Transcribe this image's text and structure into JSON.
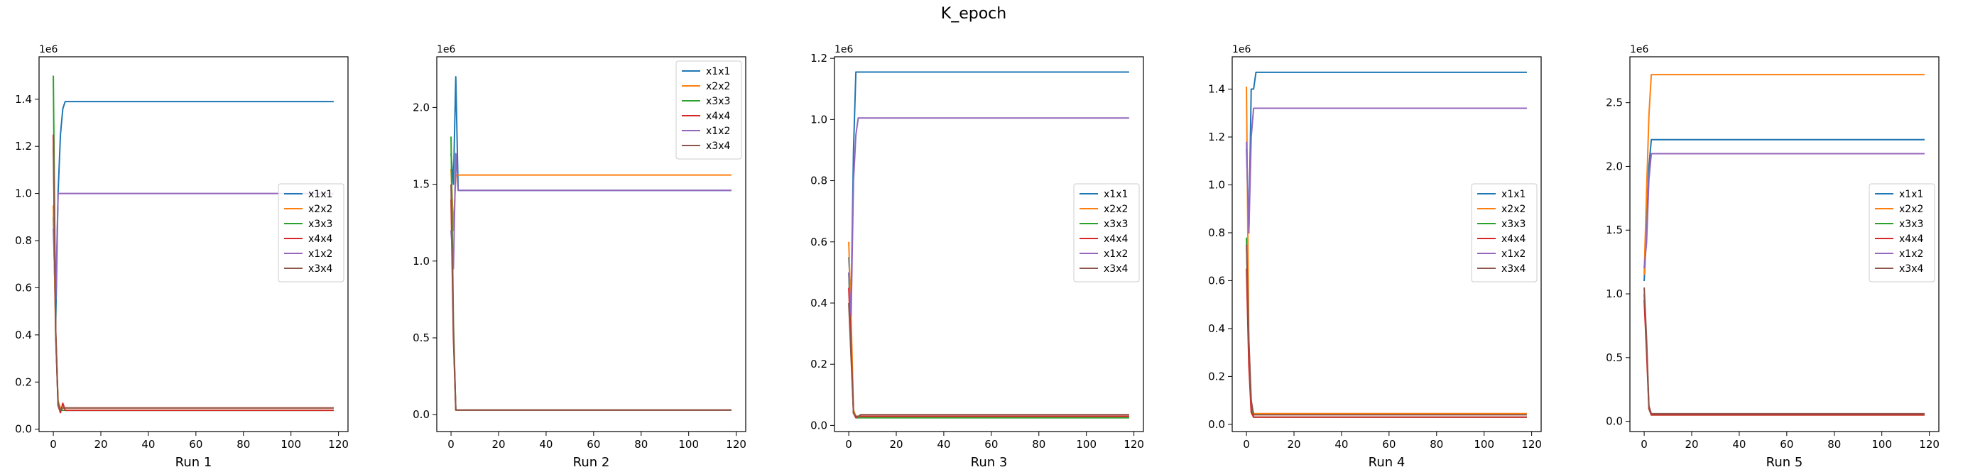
{
  "figure": {
    "title": "K_epoch"
  },
  "colors": {
    "x1x1": "#1f77b4",
    "x2x2": "#ff7f0e",
    "x3x3": "#2ca02c",
    "x4x4": "#d62728",
    "x1x2": "#9467bd",
    "x3x4": "#8c564b"
  },
  "chart_data": [
    {
      "type": "line",
      "xlabel": "Run 1",
      "scale_label": "1e6",
      "xlim": [
        -6,
        124
      ],
      "ylim": [
        -0.01,
        1.58
      ],
      "xticks": [
        0,
        20,
        40,
        60,
        80,
        100,
        120
      ],
      "yticks": [
        0.0,
        0.2,
        0.4,
        0.6,
        0.8,
        1.0,
        1.2,
        1.4
      ],
      "ytick_labels": [
        "0.0",
        "0.2",
        "0.4",
        "0.6",
        "0.8",
        "1.0",
        "1.2",
        "1.4"
      ],
      "legend_position": "center-right",
      "series": [
        {
          "name": "x1x1",
          "x": [
            0,
            1,
            2,
            3,
            4,
            5,
            118
          ],
          "y": [
            0.9,
            0.45,
            1.0,
            1.25,
            1.36,
            1.39,
            1.39
          ]
        },
        {
          "name": "x2x2",
          "x": [
            0,
            1,
            2,
            3,
            4,
            5,
            118
          ],
          "y": [
            0.95,
            0.4,
            0.12,
            0.09,
            0.09,
            0.09,
            0.09
          ]
        },
        {
          "name": "x3x3",
          "x": [
            0,
            1,
            2,
            3,
            4,
            5,
            118
          ],
          "y": [
            1.5,
            0.42,
            0.11,
            0.08,
            0.08,
            0.08,
            0.08
          ]
        },
        {
          "name": "x4x4",
          "x": [
            0,
            1,
            2,
            3,
            4,
            5,
            118
          ],
          "y": [
            1.25,
            0.42,
            0.1,
            0.07,
            0.11,
            0.08,
            0.08
          ]
        },
        {
          "name": "x1x2",
          "x": [
            0,
            1,
            2,
            3,
            118
          ],
          "y": [
            0.85,
            0.55,
            1.0,
            1.0,
            1.0
          ]
        },
        {
          "name": "x3x4",
          "x": [
            0,
            1,
            2,
            3,
            4,
            5,
            118
          ],
          "y": [
            1.2,
            0.4,
            0.1,
            0.08,
            0.09,
            0.09,
            0.09
          ]
        }
      ]
    },
    {
      "type": "line",
      "xlabel": "Run 2",
      "scale_label": "1e6",
      "xlim": [
        -6,
        124
      ],
      "ylim": [
        -0.11,
        2.33
      ],
      "xticks": [
        0,
        20,
        40,
        60,
        80,
        100,
        120
      ],
      "yticks": [
        0.0,
        0.5,
        1.0,
        1.5,
        2.0
      ],
      "ytick_labels": [
        "0.0",
        "0.5",
        "1.0",
        "1.5",
        "2.0"
      ],
      "legend_position": "upper-right",
      "series": [
        {
          "name": "x1x1",
          "x": [
            0,
            1,
            2,
            3,
            118
          ],
          "y": [
            1.7,
            1.5,
            2.2,
            1.46,
            1.46
          ]
        },
        {
          "name": "x2x2",
          "x": [
            0,
            1,
            2,
            3,
            118
          ],
          "y": [
            1.6,
            1.2,
            1.56,
            1.56,
            1.56
          ]
        },
        {
          "name": "x3x3",
          "x": [
            0,
            1,
            2,
            3,
            118
          ],
          "y": [
            1.81,
            0.6,
            0.03,
            0.03,
            0.03
          ]
        },
        {
          "name": "x4x4",
          "x": [
            0,
            1,
            2,
            3,
            118
          ],
          "y": [
            1.4,
            0.5,
            0.03,
            0.03,
            0.03
          ]
        },
        {
          "name": "x1x2",
          "x": [
            0,
            1,
            2,
            3,
            118
          ],
          "y": [
            1.2,
            0.95,
            1.7,
            1.46,
            1.46
          ]
        },
        {
          "name": "x3x4",
          "x": [
            0,
            1,
            2,
            3,
            118
          ],
          "y": [
            1.5,
            0.55,
            0.03,
            0.03,
            0.03
          ]
        }
      ]
    },
    {
      "type": "line",
      "xlabel": "Run 3",
      "scale_label": "1e6",
      "xlim": [
        -6,
        124
      ],
      "ylim": [
        -0.02,
        1.205
      ],
      "xticks": [
        0,
        20,
        40,
        60,
        80,
        100,
        120
      ],
      "yticks": [
        0.0,
        0.2,
        0.4,
        0.6,
        0.8,
        1.0,
        1.2
      ],
      "ytick_labels": [
        "0.0",
        "0.2",
        "0.4",
        "0.6",
        "0.8",
        "1.0",
        "1.2"
      ],
      "legend_position": "center-right",
      "series": [
        {
          "name": "x1x1",
          "x": [
            0,
            1,
            2,
            3,
            118
          ],
          "y": [
            0.55,
            0.4,
            0.9,
            1.155,
            1.155
          ]
        },
        {
          "name": "x2x2",
          "x": [
            0,
            1,
            2,
            3,
            118
          ],
          "y": [
            0.6,
            0.35,
            0.05,
            0.03,
            0.03
          ]
        },
        {
          "name": "x3x3",
          "x": [
            0,
            1,
            2,
            3,
            4,
            5,
            118
          ],
          "y": [
            0.5,
            0.25,
            0.04,
            0.025,
            0.025,
            0.025,
            0.025
          ]
        },
        {
          "name": "x4x4",
          "x": [
            0,
            1,
            2,
            3,
            4,
            5,
            118
          ],
          "y": [
            0.45,
            0.25,
            0.04,
            0.025,
            0.03,
            0.03,
            0.03
          ]
        },
        {
          "name": "x1x2",
          "x": [
            0,
            1,
            2,
            3,
            4,
            5,
            118
          ],
          "y": [
            0.5,
            0.36,
            0.8,
            0.95,
            1.005,
            1.005,
            1.005
          ]
        },
        {
          "name": "x3x4",
          "x": [
            0,
            1,
            2,
            3,
            4,
            5,
            118
          ],
          "y": [
            0.4,
            0.22,
            0.04,
            0.03,
            0.03,
            0.035,
            0.035
          ]
        }
      ]
    },
    {
      "type": "line",
      "xlabel": "Run 4",
      "scale_label": "1e6",
      "xlim": [
        -6,
        124
      ],
      "ylim": [
        -0.03,
        1.535
      ],
      "xticks": [
        0,
        20,
        40,
        60,
        80,
        100,
        120
      ],
      "yticks": [
        0.0,
        0.2,
        0.4,
        0.6,
        0.8,
        1.0,
        1.2,
        1.4
      ],
      "ytick_labels": [
        "0.0",
        "0.2",
        "0.4",
        "0.6",
        "0.8",
        "1.0",
        "1.2",
        "1.4"
      ],
      "legend_position": "center-right",
      "series": [
        {
          "name": "x1x1",
          "x": [
            0,
            1,
            2,
            3,
            4,
            5,
            118
          ],
          "y": [
            1.15,
            0.8,
            1.4,
            1.4,
            1.47,
            1.47,
            1.47
          ]
        },
        {
          "name": "x2x2",
          "x": [
            0,
            1,
            2,
            3,
            4,
            5,
            118
          ],
          "y": [
            1.41,
            0.35,
            0.08,
            0.045,
            0.045,
            0.045,
            0.045
          ]
        },
        {
          "name": "x3x3",
          "x": [
            0,
            1,
            2,
            3,
            118
          ],
          "y": [
            0.78,
            0.3,
            0.07,
            0.03,
            0.03
          ]
        },
        {
          "name": "x4x4",
          "x": [
            0,
            1,
            2,
            3,
            118
          ],
          "y": [
            0.65,
            0.25,
            0.05,
            0.03,
            0.03
          ]
        },
        {
          "name": "x1x2",
          "x": [
            0,
            1,
            2,
            3,
            118
          ],
          "y": [
            1.18,
            0.8,
            1.2,
            1.32,
            1.32
          ]
        },
        {
          "name": "x3x4",
          "x": [
            0,
            1,
            2,
            3,
            118
          ],
          "y": [
            0.75,
            0.35,
            0.1,
            0.04,
            0.04
          ]
        }
      ]
    },
    {
      "type": "line",
      "xlabel": "Run 5",
      "scale_label": "1e6",
      "xlim": [
        -6,
        124
      ],
      "ylim": [
        -0.08,
        2.86
      ],
      "xticks": [
        0,
        20,
        40,
        60,
        80,
        100,
        120
      ],
      "yticks": [
        0.0,
        0.5,
        1.0,
        1.5,
        2.0,
        2.5
      ],
      "ytick_labels": [
        "0.0",
        "0.5",
        "1.0",
        "1.5",
        "2.0",
        "2.5"
      ],
      "legend_position": "center-right",
      "series": [
        {
          "name": "x1x1",
          "x": [
            0,
            1,
            2,
            3,
            118
          ],
          "y": [
            1.1,
            1.5,
            2.0,
            2.21,
            2.21
          ]
        },
        {
          "name": "x2x2",
          "x": [
            0,
            1,
            2,
            3,
            118
          ],
          "y": [
            1.15,
            1.8,
            2.4,
            2.72,
            2.72
          ]
        },
        {
          "name": "x3x3",
          "x": [
            0,
            1,
            2,
            3,
            118
          ],
          "y": [
            1.0,
            0.6,
            0.1,
            0.05,
            0.05
          ]
        },
        {
          "name": "x4x4",
          "x": [
            0,
            1,
            2,
            3,
            118
          ],
          "y": [
            0.95,
            0.55,
            0.1,
            0.05,
            0.05
          ]
        },
        {
          "name": "x1x2",
          "x": [
            0,
            1,
            2,
            3,
            118
          ],
          "y": [
            1.2,
            1.4,
            1.9,
            2.1,
            2.1
          ]
        },
        {
          "name": "x3x4",
          "x": [
            0,
            1,
            2,
            3,
            118
          ],
          "y": [
            1.05,
            0.65,
            0.12,
            0.06,
            0.06
          ]
        }
      ]
    }
  ]
}
